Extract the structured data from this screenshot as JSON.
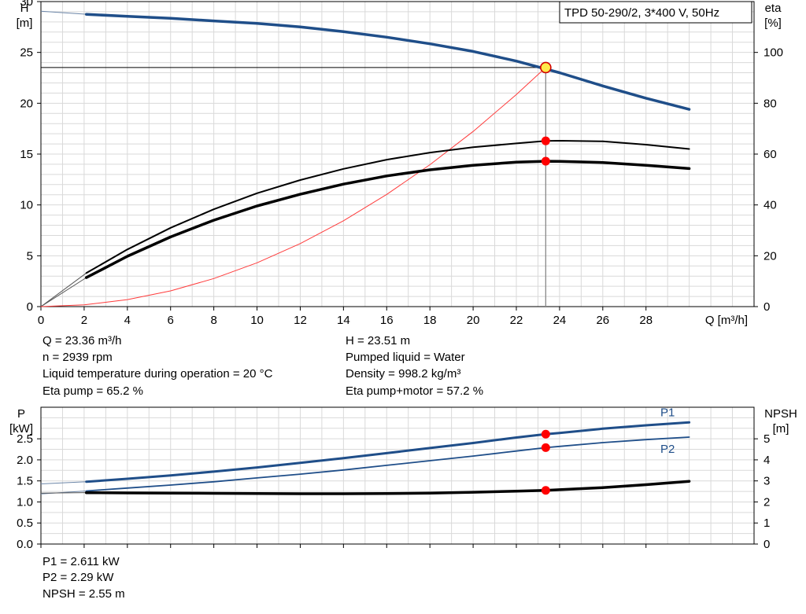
{
  "chart_data": [
    {
      "type": "line",
      "title": "TPD 50-290/2, 3*400 V, 50Hz",
      "xlabel": "Q [m³/h]",
      "ylabel": "H\n[m]",
      "y2label": "eta\n[%]",
      "xlim": [
        0,
        33
      ],
      "xticks": [
        0,
        2,
        4,
        6,
        8,
        10,
        12,
        14,
        16,
        18,
        20,
        22,
        24,
        26,
        28
      ],
      "ylim": [
        0,
        30
      ],
      "yticks": [
        0,
        5,
        10,
        15,
        20,
        25,
        30
      ],
      "y2lim": [
        0,
        120
      ],
      "y2ticks": [
        0,
        20,
        40,
        60,
        80,
        100
      ],
      "grid": true,
      "series": [
        {
          "id": "H",
          "axis": "left",
          "color": "#1f4e89",
          "x": [
            2.1,
            4,
            6,
            8,
            10,
            12,
            14,
            16,
            18,
            20,
            22,
            24,
            26,
            28,
            30
          ],
          "values": [
            28.75,
            28.55,
            28.35,
            28.1,
            27.85,
            27.5,
            27.05,
            26.5,
            25.85,
            25.1,
            24.15,
            23.0,
            21.7,
            20.5,
            19.4
          ]
        },
        {
          "id": "eta_pump",
          "axis": "right",
          "color": "#000000",
          "x": [
            2.1,
            4,
            6,
            8,
            10,
            12,
            14,
            16,
            18,
            20,
            22,
            23.36,
            24,
            26,
            28,
            30
          ],
          "values": [
            13.2,
            22.5,
            31,
            38.3,
            44.6,
            49.8,
            54.2,
            57.8,
            60.6,
            62.7,
            64.2,
            65.2,
            65.25,
            65.0,
            63.7,
            62.0
          ]
        },
        {
          "id": "eta_pump_motor",
          "axis": "right",
          "color": "#000000",
          "x": [
            2.1,
            4,
            6,
            8,
            10,
            12,
            14,
            16,
            18,
            20,
            22,
            23.36,
            24,
            26,
            28,
            30
          ],
          "values": [
            11.4,
            19.8,
            27.4,
            34.0,
            39.6,
            44.2,
            48.2,
            51.4,
            53.8,
            55.6,
            56.8,
            57.2,
            57.15,
            56.7,
            55.6,
            54.3
          ]
        },
        {
          "id": "system_curve",
          "axis": "left",
          "color": "#ff3b3b",
          "x": [
            0,
            2,
            4,
            6,
            8,
            10,
            12,
            14,
            16,
            18,
            20,
            22,
            23.36
          ],
          "values": [
            0,
            0.17,
            0.69,
            1.55,
            2.76,
            4.31,
            6.2,
            8.44,
            11.03,
            13.96,
            17.23,
            20.85,
            23.51
          ]
        }
      ],
      "operating_point": {
        "Q": 23.36,
        "H": 23.51,
        "eta_pump": 65.2,
        "eta_pump_motor": 57.2
      }
    },
    {
      "type": "line",
      "ylabel": "P\n[kW]",
      "y2label": "NPSH\n[m]",
      "xlim": [
        0,
        33
      ],
      "ylim": [
        0,
        3.25
      ],
      "yticks": [
        0.0,
        0.5,
        1.0,
        1.5,
        2.0,
        2.5
      ],
      "y2lim": [
        0,
        6.5
      ],
      "y2ticks": [
        0,
        1,
        2,
        3,
        4,
        5
      ],
      "grid": true,
      "series": [
        {
          "id": "P1",
          "name": "P1",
          "axis": "left",
          "color": "#1f4e89",
          "x": [
            2.1,
            4,
            6,
            8,
            10,
            12,
            14,
            16,
            18,
            20,
            22,
            23.36,
            24,
            26,
            28,
            30
          ],
          "values": [
            1.48,
            1.55,
            1.63,
            1.72,
            1.82,
            1.93,
            2.04,
            2.16,
            2.28,
            2.4,
            2.53,
            2.611,
            2.64,
            2.74,
            2.82,
            2.89
          ]
        },
        {
          "id": "P2",
          "name": "P2",
          "axis": "left",
          "color": "#1f4e89",
          "x": [
            2.1,
            4,
            6,
            8,
            10,
            12,
            14,
            16,
            18,
            20,
            22,
            23.36,
            24,
            26,
            28,
            30
          ],
          "values": [
            1.26,
            1.33,
            1.4,
            1.48,
            1.57,
            1.66,
            1.76,
            1.87,
            1.98,
            2.09,
            2.21,
            2.29,
            2.32,
            2.41,
            2.48,
            2.54
          ]
        },
        {
          "id": "NPSH",
          "axis": "right",
          "color": "#000000",
          "x": [
            2.1,
            4,
            6,
            8,
            10,
            12,
            14,
            16,
            18,
            20,
            22,
            23.36,
            24,
            26,
            28,
            30
          ],
          "values": [
            2.44,
            2.43,
            2.42,
            2.41,
            2.4,
            2.39,
            2.39,
            2.4,
            2.42,
            2.46,
            2.51,
            2.55,
            2.58,
            2.68,
            2.82,
            2.98
          ]
        }
      ],
      "operating_point": {
        "Q": 23.36,
        "P1": 2.611,
        "P2": 2.29,
        "NPSH": 2.55
      }
    }
  ],
  "info": {
    "q": "Q = 23.36 m³/h",
    "h": "H = 23.51 m",
    "n": "n = 2939 rpm",
    "liquid": "Pumped liquid = Water",
    "temp": "Liquid temperature during operation = 20 °C",
    "density": "Density = 998.2 kg/m³",
    "eta_pump": "Eta pump = 65.2 %",
    "eta_pump_motor": "Eta pump+motor = 57.2 %",
    "p1": "P1 = 2.611 kW",
    "p2": "P2 = 2.29 kW",
    "npsh": "NPSH = 2.55 m"
  }
}
